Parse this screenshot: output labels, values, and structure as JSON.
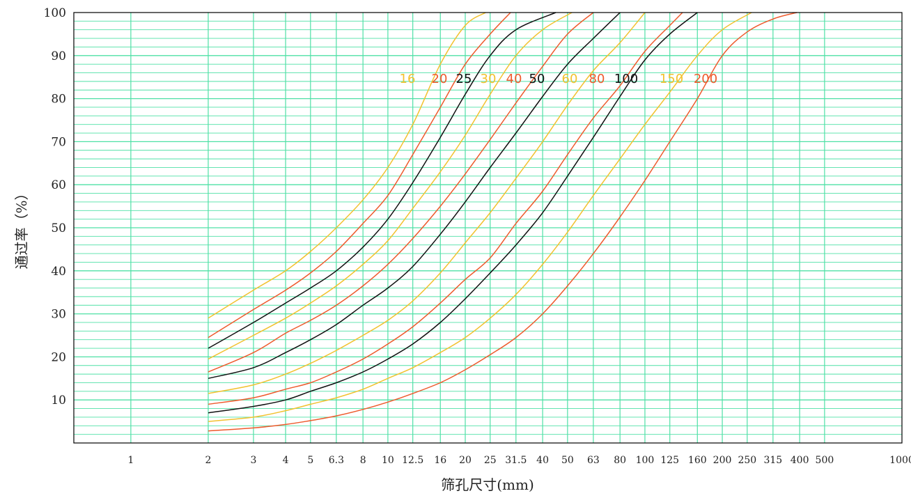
{
  "chart_data": {
    "type": "line",
    "title": "",
    "xlabel": "筛孔尺寸(mm)",
    "ylabel": "通过率（%）",
    "x_scale": "log",
    "xlim": [
      0.6,
      1000
    ],
    "ylim": [
      0,
      100
    ],
    "grid": true,
    "x_ticks": [
      {
        "value": 1,
        "label": "1"
      },
      {
        "value": 2,
        "label": "2"
      },
      {
        "value": 3,
        "label": "3"
      },
      {
        "value": 4,
        "label": "4"
      },
      {
        "value": 5,
        "label": "5"
      },
      {
        "value": 6.3,
        "label": "6.3"
      },
      {
        "value": 8,
        "label": "8"
      },
      {
        "value": 10,
        "label": "10"
      },
      {
        "value": 12.5,
        "label": "12.5"
      },
      {
        "value": 16,
        "label": "16"
      },
      {
        "value": 20,
        "label": "20"
      },
      {
        "value": 25,
        "label": "25"
      },
      {
        "value": 31.5,
        "label": "31.5"
      },
      {
        "value": 40,
        "label": "40"
      },
      {
        "value": 50,
        "label": "50"
      },
      {
        "value": 63,
        "label": "63"
      },
      {
        "value": 80,
        "label": "80"
      },
      {
        "value": 100,
        "label": "100"
      },
      {
        "value": 125,
        "label": "125"
      },
      {
        "value": 160,
        "label": "160"
      },
      {
        "value": 200,
        "label": "200"
      },
      {
        "value": 250,
        "label": "250"
      },
      {
        "value": 315,
        "label": "315"
      },
      {
        "value": 400,
        "label": "400"
      },
      {
        "value": 500,
        "label": "500"
      },
      {
        "value": 1000,
        "label": "1000"
      }
    ],
    "y_ticks": [
      10,
      20,
      30,
      40,
      50,
      60,
      70,
      80,
      90,
      100
    ],
    "colors": {
      "grid": "#4fe0a6",
      "frame": "#000000",
      "yellow": "#f2c12e",
      "red": "#ee5a2c",
      "black": "#111111"
    },
    "series": [
      {
        "name": "16",
        "color": "#f2c12e",
        "points": [
          [
            2,
            29
          ],
          [
            3,
            35.5
          ],
          [
            4,
            40
          ],
          [
            5,
            44.5
          ],
          [
            6.3,
            50
          ],
          [
            8,
            56.5
          ],
          [
            10,
            64
          ],
          [
            12.5,
            74
          ],
          [
            16,
            88
          ],
          [
            20,
            97
          ],
          [
            24,
            100
          ]
        ]
      },
      {
        "name": "20",
        "color": "#ee5a2c",
        "points": [
          [
            2,
            24.5
          ],
          [
            3,
            31
          ],
          [
            4,
            35.5
          ],
          [
            5,
            39.5
          ],
          [
            6.3,
            44.5
          ],
          [
            8,
            51
          ],
          [
            10,
            57.5
          ],
          [
            12.5,
            67
          ],
          [
            16,
            78
          ],
          [
            20,
            88
          ],
          [
            25,
            95
          ],
          [
            30,
            100
          ]
        ]
      },
      {
        "name": "25",
        "color": "#111111",
        "points": [
          [
            2,
            22
          ],
          [
            3,
            28
          ],
          [
            4,
            32.5
          ],
          [
            5,
            36
          ],
          [
            6.3,
            40
          ],
          [
            8,
            45.5
          ],
          [
            10,
            52
          ],
          [
            12.5,
            60.5
          ],
          [
            16,
            71
          ],
          [
            20,
            81
          ],
          [
            25,
            90
          ],
          [
            31.5,
            96
          ],
          [
            45,
            100
          ]
        ]
      },
      {
        "name": "30",
        "color": "#f2c12e",
        "points": [
          [
            2,
            19.5
          ],
          [
            3,
            25
          ],
          [
            4,
            29
          ],
          [
            5,
            32.5
          ],
          [
            6.3,
            36.5
          ],
          [
            8,
            41.5
          ],
          [
            10,
            47
          ],
          [
            12.5,
            54.5
          ],
          [
            16,
            63
          ],
          [
            20,
            71.5
          ],
          [
            25,
            81
          ],
          [
            31.5,
            90
          ],
          [
            40,
            96
          ],
          [
            52,
            100
          ]
        ]
      },
      {
        "name": "40",
        "color": "#ee5a2c",
        "points": [
          [
            2,
            16.5
          ],
          [
            3,
            21
          ],
          [
            4,
            25.5
          ],
          [
            5,
            28.5
          ],
          [
            6.3,
            32
          ],
          [
            8,
            36.5
          ],
          [
            10,
            41.5
          ],
          [
            12.5,
            47.5
          ],
          [
            16,
            55
          ],
          [
            20,
            62.5
          ],
          [
            25,
            70.5
          ],
          [
            31.5,
            79
          ],
          [
            40,
            87.5
          ],
          [
            50,
            95
          ],
          [
            63,
            100
          ]
        ]
      },
      {
        "name": "50",
        "color": "#111111",
        "points": [
          [
            2,
            15
          ],
          [
            3,
            17.5
          ],
          [
            4,
            21
          ],
          [
            5,
            24
          ],
          [
            6.3,
            27.5
          ],
          [
            8,
            32
          ],
          [
            10,
            36
          ],
          [
            12.5,
            41
          ],
          [
            16,
            48.5
          ],
          [
            20,
            56
          ],
          [
            25,
            64
          ],
          [
            31.5,
            72
          ],
          [
            40,
            80.5
          ],
          [
            50,
            88
          ],
          [
            63,
            94
          ],
          [
            80,
            100
          ]
        ]
      },
      {
        "name": "60",
        "color": "#f2c12e",
        "points": [
          [
            2,
            11.5
          ],
          [
            3,
            13.5
          ],
          [
            4,
            16
          ],
          [
            5,
            18.5
          ],
          [
            6.3,
            21.5
          ],
          [
            8,
            25
          ],
          [
            10,
            28.5
          ],
          [
            12.5,
            33
          ],
          [
            16,
            39.5
          ],
          [
            20,
            46.5
          ],
          [
            25,
            53.5
          ],
          [
            31.5,
            61.5
          ],
          [
            40,
            70
          ],
          [
            50,
            78.5
          ],
          [
            63,
            86.5
          ],
          [
            80,
            93
          ],
          [
            100,
            100
          ]
        ]
      },
      {
        "name": "80",
        "color": "#ee5a2c",
        "points": [
          [
            2,
            9
          ],
          [
            3,
            10.5
          ],
          [
            4,
            12.5
          ],
          [
            5,
            14
          ],
          [
            6.3,
            16.5
          ],
          [
            8,
            19.5
          ],
          [
            10,
            23
          ],
          [
            12.5,
            27
          ],
          [
            16,
            32.5
          ],
          [
            20,
            38
          ],
          [
            25,
            43
          ],
          [
            31.5,
            51
          ],
          [
            40,
            58.5
          ],
          [
            50,
            67
          ],
          [
            63,
            75.5
          ],
          [
            80,
            83
          ],
          [
            100,
            91
          ],
          [
            125,
            97
          ],
          [
            140,
            100
          ]
        ]
      },
      {
        "name": "100",
        "color": "#111111",
        "points": [
          [
            2,
            7
          ],
          [
            3,
            8.5
          ],
          [
            4,
            10
          ],
          [
            5,
            12
          ],
          [
            6.3,
            14
          ],
          [
            8,
            16.5
          ],
          [
            10,
            19.5
          ],
          [
            12.5,
            23
          ],
          [
            16,
            28
          ],
          [
            20,
            33.5
          ],
          [
            25,
            39.5
          ],
          [
            31.5,
            46
          ],
          [
            40,
            53.5
          ],
          [
            50,
            62
          ],
          [
            63,
            71
          ],
          [
            80,
            80.5
          ],
          [
            100,
            89
          ],
          [
            125,
            95
          ],
          [
            160,
            100
          ]
        ]
      },
      {
        "name": "150",
        "color": "#f2c12e",
        "points": [
          [
            2,
            5
          ],
          [
            3,
            6
          ],
          [
            4,
            7.5
          ],
          [
            5,
            9
          ],
          [
            6.3,
            10.5
          ],
          [
            8,
            12.5
          ],
          [
            10,
            15
          ],
          [
            12.5,
            17.5
          ],
          [
            16,
            21
          ],
          [
            20,
            24.5
          ],
          [
            25,
            29
          ],
          [
            31.5,
            34.5
          ],
          [
            40,
            41.5
          ],
          [
            50,
            49
          ],
          [
            63,
            57.5
          ],
          [
            80,
            66
          ],
          [
            100,
            74
          ],
          [
            125,
            81.5
          ],
          [
            160,
            90
          ],
          [
            200,
            96
          ],
          [
            260,
            100
          ]
        ]
      },
      {
        "name": "200",
        "color": "#ee5a2c",
        "points": [
          [
            2,
            2.8
          ],
          [
            3,
            3.5
          ],
          [
            4,
            4.3
          ],
          [
            5,
            5.2
          ],
          [
            6.3,
            6.3
          ],
          [
            8,
            7.8
          ],
          [
            10,
            9.5
          ],
          [
            12.5,
            11.5
          ],
          [
            16,
            14
          ],
          [
            20,
            17
          ],
          [
            25,
            20.5
          ],
          [
            31.5,
            24.5
          ],
          [
            40,
            30
          ],
          [
            50,
            36.5
          ],
          [
            63,
            44
          ],
          [
            80,
            52.5
          ],
          [
            100,
            61
          ],
          [
            125,
            70
          ],
          [
            160,
            80
          ],
          [
            200,
            90
          ],
          [
            250,
            95.5
          ],
          [
            315,
            98.5
          ],
          [
            390,
            100
          ]
        ]
      }
    ],
    "label_order": [
      "16",
      "20",
      "25",
      "30",
      "40",
      "50",
      "60",
      "80",
      "100",
      "150",
      "200"
    ]
  }
}
